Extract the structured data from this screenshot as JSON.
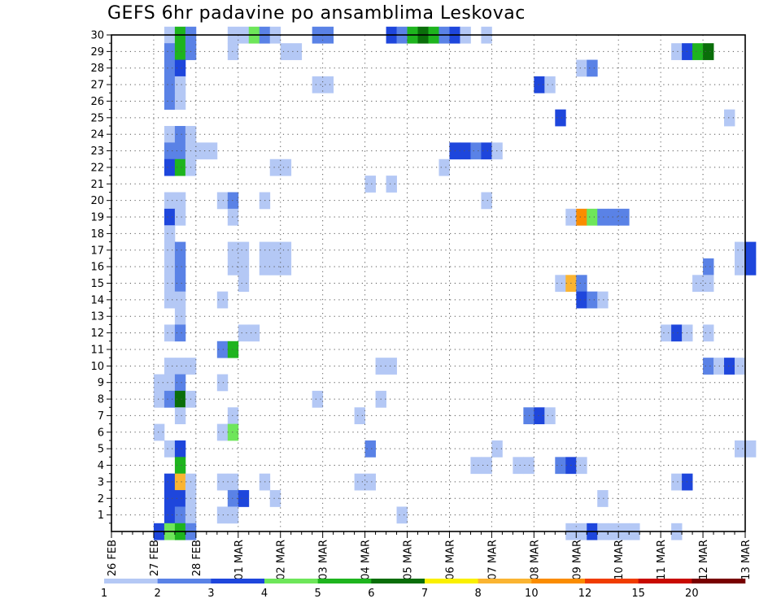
{
  "chart_data": {
    "type": "heatmap",
    "title": "GEFS 6hr padavine po ansamblima Leskovac",
    "xlabel": "",
    "ylabel": "",
    "x_ticks": [
      "26 FEB",
      "27 FEB",
      "28 FEB",
      "01 MAR",
      "02 MAR",
      "03 MAR",
      "04 MAR",
      "05 MAR",
      "06 MAR",
      "07 MAR",
      "08 MAR",
      "09 MAR",
      "10 MAR",
      "11 MAR",
      "12 MAR",
      "13 MAR"
    ],
    "x_range_steps": [
      0,
      60
    ],
    "steps_per_day": 4,
    "y_ticks": [
      1,
      2,
      3,
      4,
      5,
      6,
      7,
      8,
      9,
      10,
      11,
      12,
      13,
      14,
      15,
      16,
      17,
      18,
      19,
      20,
      21,
      22,
      23,
      24,
      25,
      26,
      27,
      28,
      29,
      30
    ],
    "y_range": [
      0,
      30
    ],
    "grid": true,
    "legend_position": "bottom",
    "levels": [
      "1",
      "2",
      "3",
      "4",
      "5",
      "6",
      "7",
      "8",
      "10",
      "12",
      "15",
      "20"
    ],
    "level_colors": [
      "#b4c8f5",
      "#5a82e6",
      "#1e46dc",
      "#6ee65a",
      "#1eb41e",
      "#0a6e0a",
      "#faf000",
      "#fab432",
      "#fa8c00",
      "#f03c00",
      "#c80a00",
      "#780000"
    ],
    "cells": [
      [
        5,
        30,
        0
      ],
      [
        6,
        30,
        4
      ],
      [
        7,
        30,
        1
      ],
      [
        11,
        30,
        0
      ],
      [
        12,
        30,
        0
      ],
      [
        13,
        30,
        3
      ],
      [
        14,
        30,
        1
      ],
      [
        15,
        30,
        0
      ],
      [
        19,
        30,
        1
      ],
      [
        20,
        30,
        1
      ],
      [
        26,
        30,
        2
      ],
      [
        27,
        30,
        1
      ],
      [
        28,
        30,
        4
      ],
      [
        29,
        30,
        5
      ],
      [
        30,
        30,
        4
      ],
      [
        31,
        30,
        1
      ],
      [
        32,
        30,
        2
      ],
      [
        33,
        30,
        0
      ],
      [
        35,
        30,
        0
      ],
      [
        5,
        29,
        1
      ],
      [
        6,
        29,
        4
      ],
      [
        7,
        29,
        1
      ],
      [
        11,
        29,
        0
      ],
      [
        16,
        29,
        0
      ],
      [
        17,
        29,
        0
      ],
      [
        53,
        29,
        0
      ],
      [
        54,
        29,
        2
      ],
      [
        55,
        29,
        4
      ],
      [
        56,
        29,
        5
      ],
      [
        5,
        28,
        1
      ],
      [
        6,
        28,
        2
      ],
      [
        44,
        28,
        0
      ],
      [
        45,
        28,
        1
      ],
      [
        5,
        27,
        1
      ],
      [
        6,
        27,
        0
      ],
      [
        19,
        27,
        0
      ],
      [
        20,
        27,
        0
      ],
      [
        40,
        27,
        2
      ],
      [
        41,
        27,
        0
      ],
      [
        5,
        26,
        1
      ],
      [
        6,
        26,
        0
      ],
      [
        42,
        25,
        2
      ],
      [
        58,
        25,
        0
      ],
      [
        5,
        24,
        0
      ],
      [
        6,
        24,
        1
      ],
      [
        7,
        24,
        0
      ],
      [
        5,
        23,
        1
      ],
      [
        6,
        23,
        1
      ],
      [
        7,
        23,
        0
      ],
      [
        8,
        23,
        0
      ],
      [
        9,
        23,
        0
      ],
      [
        32,
        23,
        2
      ],
      [
        33,
        23,
        2
      ],
      [
        34,
        23,
        1
      ],
      [
        35,
        23,
        2
      ],
      [
        36,
        23,
        0
      ],
      [
        5,
        22,
        2
      ],
      [
        6,
        22,
        4
      ],
      [
        7,
        22,
        0
      ],
      [
        15,
        22,
        0
      ],
      [
        16,
        22,
        0
      ],
      [
        31,
        22,
        0
      ],
      [
        24,
        21,
        0
      ],
      [
        26,
        21,
        0
      ],
      [
        5,
        20,
        0
      ],
      [
        6,
        20,
        0
      ],
      [
        10,
        20,
        0
      ],
      [
        11,
        20,
        1
      ],
      [
        14,
        20,
        0
      ],
      [
        35,
        20,
        0
      ],
      [
        5,
        19,
        2
      ],
      [
        6,
        19,
        0
      ],
      [
        11,
        19,
        0
      ],
      [
        43,
        19,
        0
      ],
      [
        44,
        19,
        8
      ],
      [
        45,
        19,
        3
      ],
      [
        46,
        19,
        1
      ],
      [
        47,
        19,
        1
      ],
      [
        48,
        19,
        1
      ],
      [
        5,
        18,
        0
      ],
      [
        5,
        17,
        0
      ],
      [
        6,
        17,
        1
      ],
      [
        11,
        17,
        0
      ],
      [
        12,
        17,
        0
      ],
      [
        14,
        17,
        0
      ],
      [
        15,
        17,
        0
      ],
      [
        16,
        17,
        0
      ],
      [
        59,
        17,
        0
      ],
      [
        60,
        17,
        2
      ],
      [
        5,
        16,
        0
      ],
      [
        6,
        16,
        1
      ],
      [
        11,
        16,
        0
      ],
      [
        12,
        16,
        0
      ],
      [
        14,
        16,
        0
      ],
      [
        15,
        16,
        0
      ],
      [
        16,
        16,
        0
      ],
      [
        56,
        16,
        1
      ],
      [
        59,
        16,
        0
      ],
      [
        60,
        16,
        2
      ],
      [
        5,
        15,
        0
      ],
      [
        6,
        15,
        1
      ],
      [
        12,
        15,
        0
      ],
      [
        42,
        15,
        0
      ],
      [
        43,
        15,
        7
      ],
      [
        44,
        15,
        1
      ],
      [
        55,
        15,
        0
      ],
      [
        56,
        15,
        0
      ],
      [
        5,
        14,
        0
      ],
      [
        6,
        14,
        0
      ],
      [
        10,
        14,
        0
      ],
      [
        44,
        14,
        2
      ],
      [
        45,
        14,
        1
      ],
      [
        46,
        14,
        0
      ],
      [
        6,
        13,
        0
      ],
      [
        5,
        12,
        0
      ],
      [
        6,
        12,
        1
      ],
      [
        12,
        12,
        0
      ],
      [
        13,
        12,
        0
      ],
      [
        52,
        12,
        0
      ],
      [
        53,
        12,
        2
      ],
      [
        54,
        12,
        0
      ],
      [
        56,
        12,
        0
      ],
      [
        10,
        11,
        1
      ],
      [
        11,
        11,
        4
      ],
      [
        5,
        10,
        0
      ],
      [
        6,
        10,
        0
      ],
      [
        7,
        10,
        0
      ],
      [
        25,
        10,
        0
      ],
      [
        26,
        10,
        0
      ],
      [
        56,
        10,
        1
      ],
      [
        57,
        10,
        0
      ],
      [
        58,
        10,
        2
      ],
      [
        59,
        10,
        0
      ],
      [
        4,
        9,
        0
      ],
      [
        5,
        9,
        0
      ],
      [
        6,
        9,
        1
      ],
      [
        10,
        9,
        0
      ],
      [
        4,
        8,
        0
      ],
      [
        5,
        8,
        1
      ],
      [
        6,
        8,
        5
      ],
      [
        7,
        8,
        0
      ],
      [
        19,
        8,
        0
      ],
      [
        25,
        8,
        0
      ],
      [
        6,
        7,
        0
      ],
      [
        11,
        7,
        0
      ],
      [
        23,
        7,
        0
      ],
      [
        39,
        7,
        1
      ],
      [
        40,
        7,
        2
      ],
      [
        41,
        7,
        0
      ],
      [
        4,
        6,
        0
      ],
      [
        10,
        6,
        0
      ],
      [
        11,
        6,
        3
      ],
      [
        5,
        5,
        0
      ],
      [
        6,
        5,
        2
      ],
      [
        24,
        5,
        1
      ],
      [
        36,
        5,
        0
      ],
      [
        59,
        5,
        0
      ],
      [
        60,
        5,
        0
      ],
      [
        6,
        4,
        4
      ],
      [
        34,
        4,
        0
      ],
      [
        35,
        4,
        0
      ],
      [
        38,
        4,
        0
      ],
      [
        39,
        4,
        0
      ],
      [
        42,
        4,
        1
      ],
      [
        43,
        4,
        2
      ],
      [
        44,
        4,
        0
      ],
      [
        5,
        3,
        2
      ],
      [
        6,
        3,
        7
      ],
      [
        7,
        3,
        0
      ],
      [
        10,
        3,
        0
      ],
      [
        11,
        3,
        0
      ],
      [
        14,
        3,
        0
      ],
      [
        23,
        3,
        0
      ],
      [
        24,
        3,
        0
      ],
      [
        53,
        3,
        0
      ],
      [
        54,
        3,
        2
      ],
      [
        5,
        2,
        2
      ],
      [
        6,
        2,
        2
      ],
      [
        7,
        2,
        0
      ],
      [
        11,
        2,
        1
      ],
      [
        12,
        2,
        2
      ],
      [
        15,
        2,
        0
      ],
      [
        46,
        2,
        0
      ],
      [
        5,
        1,
        2
      ],
      [
        6,
        1,
        1
      ],
      [
        7,
        1,
        0
      ],
      [
        10,
        1,
        0
      ],
      [
        11,
        1,
        0
      ],
      [
        27,
        1,
        0
      ],
      [
        4,
        0,
        2
      ],
      [
        5,
        0,
        3
      ],
      [
        6,
        0,
        4
      ],
      [
        7,
        0,
        1
      ],
      [
        43,
        0,
        0
      ],
      [
        44,
        0,
        0
      ],
      [
        45,
        0,
        2
      ],
      [
        46,
        0,
        0
      ],
      [
        47,
        0,
        0
      ],
      [
        48,
        0,
        0
      ],
      [
        49,
        0,
        0
      ],
      [
        53,
        0,
        0
      ]
    ]
  }
}
